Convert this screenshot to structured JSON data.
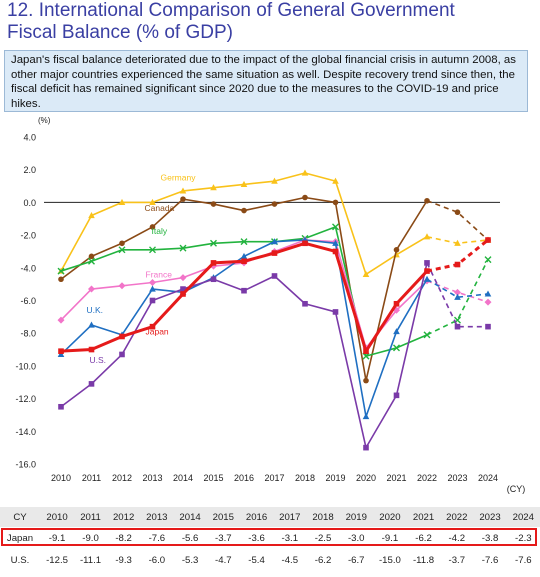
{
  "title": {
    "line1": "12. International Comparison of General Government",
    "line2": "Fiscal Balance (% of GDP)"
  },
  "description": "Japan's fiscal balance deteriorated due to the impact of the global financial crisis in autumn 2008, as other major countries experienced the same situation as well. Despite recovery trend since then, the fiscal deficit has remained significant since 2020 due to the measures to the COVID-19 and price hikes.",
  "chart_data": {
    "type": "line",
    "ylabel": "(%)",
    "xlabel": "(CY)",
    "ylim": [
      -16,
      4
    ],
    "yticks": [
      "4.0",
      "2.0",
      "0.0",
      "-2.0",
      "-4.0",
      "-6.0",
      "-8.0",
      "-10.0",
      "-12.0",
      "-14.0",
      "-16.0"
    ],
    "x": [
      2010,
      2011,
      2012,
      2013,
      2014,
      2015,
      2016,
      2017,
      2018,
      2019,
      2020,
      2021,
      2022,
      2023,
      2024
    ],
    "forecast_from": 2023,
    "series": [
      {
        "name": "Germany",
        "color": "#f9c21a",
        "marker": "triangle",
        "values": [
          -4.2,
          -0.8,
          0.0,
          0.0,
          0.7,
          0.9,
          1.1,
          1.3,
          1.8,
          1.3,
          -4.4,
          -3.2,
          -2.1,
          -2.5,
          -2.3
        ]
      },
      {
        "name": "Canada",
        "color": "#8a4a16",
        "marker": "circle",
        "values": [
          -4.7,
          -3.3,
          -2.5,
          -1.5,
          0.2,
          -0.1,
          -0.5,
          -0.1,
          0.3,
          0.0,
          -10.9,
          -2.9,
          0.1,
          -0.6,
          -2.3
        ]
      },
      {
        "name": "Italy",
        "color": "#22b33e",
        "marker": "x",
        "values": [
          -4.2,
          -3.6,
          -2.9,
          -2.9,
          -2.8,
          -2.5,
          -2.4,
          -2.4,
          -2.2,
          -1.5,
          -9.4,
          -8.9,
          -8.1,
          -7.2,
          -3.5
        ]
      },
      {
        "name": "France",
        "color": "#f274c9",
        "marker": "diamond",
        "values": [
          -7.2,
          -5.3,
          -5.1,
          -4.9,
          -4.6,
          -3.9,
          -3.7,
          -3.0,
          -2.3,
          -2.4,
          -8.9,
          -6.6,
          -4.8,
          -5.5,
          -6.1
        ]
      },
      {
        "name": "U.K.",
        "color": "#1f6fc2",
        "marker": "triangle",
        "values": [
          -9.3,
          -7.5,
          -8.1,
          -5.3,
          -5.5,
          -4.6,
          -3.3,
          -2.4,
          -2.3,
          -2.5,
          -13.1,
          -7.9,
          -4.7,
          -5.8,
          -5.6
        ]
      },
      {
        "name": "U.S.",
        "color": "#7a3aa8",
        "marker": "square",
        "values": [
          -12.5,
          -11.1,
          -9.3,
          -6.0,
          -5.3,
          -4.7,
          -5.4,
          -4.5,
          -6.2,
          -6.7,
          -15.0,
          -11.8,
          -3.7,
          -7.6,
          -7.6
        ]
      },
      {
        "name": "Japan",
        "color": "#e51a1a",
        "marker": "square",
        "values": [
          -9.1,
          -9.0,
          -8.2,
          -7.6,
          -5.6,
          -3.7,
          -3.6,
          -3.1,
          -2.5,
          -3.0,
          -9.1,
          -6.2,
          -4.2,
          -3.8,
          -2.3
        ]
      }
    ]
  },
  "table": {
    "header": [
      "CY",
      "2010",
      "2011",
      "2012",
      "2013",
      "2014",
      "2015",
      "2016",
      "2017",
      "2018",
      "2019",
      "2020",
      "2021",
      "2022",
      "2023",
      "2024"
    ],
    "rows": [
      {
        "label": "Japan",
        "values": [
          "-9.1",
          "-9.0",
          "-8.2",
          "-7.6",
          "-5.6",
          "-3.7",
          "-3.6",
          "-3.1",
          "-2.5",
          "-3.0",
          "-9.1",
          "-6.2",
          "-4.2",
          "-3.8",
          "-2.3"
        ]
      },
      {
        "label": "U.S.",
        "values": [
          "-12.5",
          "-11.1",
          "-9.3",
          "-6.0",
          "-5.3",
          "-4.7",
          "-5.4",
          "-4.5",
          "-6.2",
          "-6.7",
          "-15.0",
          "-11.8",
          "-3.7",
          "-7.6",
          "-7.6"
        ]
      }
    ]
  }
}
